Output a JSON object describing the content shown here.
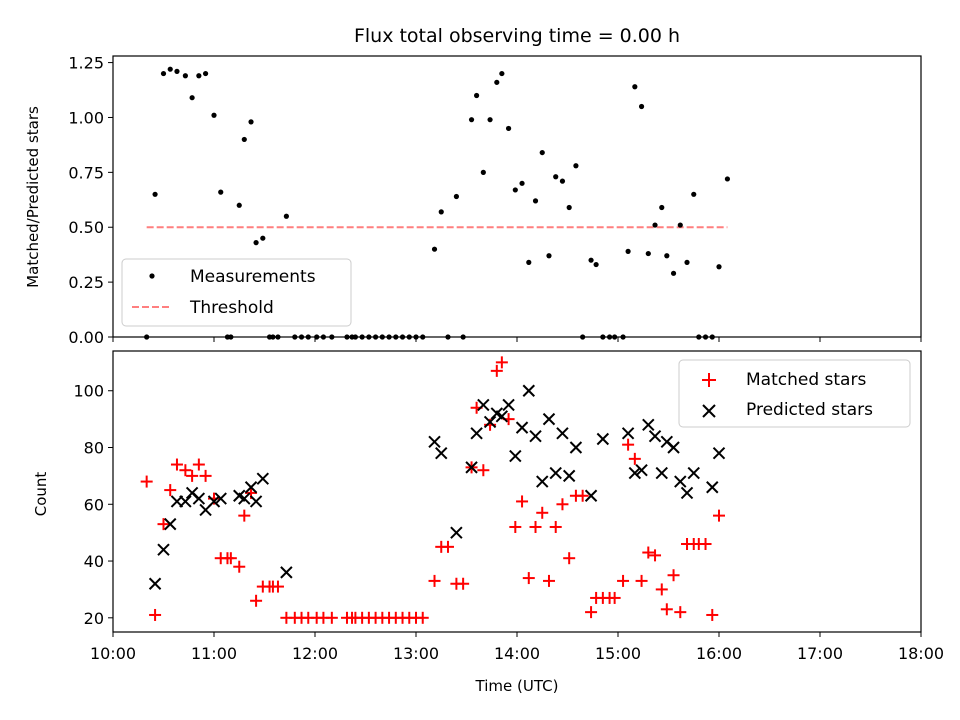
{
  "chart_data": [
    {
      "type": "scatter",
      "title": "Flux total observing time = 0.00 h",
      "xlabel": "",
      "ylabel": "Matched/Predicted stars",
      "xlim": [
        "10:00",
        "18:00"
      ],
      "ylim": [
        0,
        1.28
      ],
      "y_ticks": [
        "0.00",
        "0.25",
        "0.50",
        "0.75",
        "1.00",
        "1.25"
      ],
      "legend_position": "lower-left",
      "series": [
        {
          "name": "Measurements",
          "marker": "dot",
          "color": "#000000",
          "points": [
            [
              "10:20",
              0.0
            ],
            [
              "10:25",
              0.65
            ],
            [
              "10:30",
              1.2
            ],
            [
              "10:34",
              1.22
            ],
            [
              "10:38",
              1.21
            ],
            [
              "10:43",
              1.19
            ],
            [
              "10:47",
              1.09
            ],
            [
              "10:51",
              1.19
            ],
            [
              "10:55",
              1.2
            ],
            [
              "11:00",
              1.01
            ],
            [
              "11:04",
              0.66
            ],
            [
              "11:08",
              0.0
            ],
            [
              "11:10",
              0.0
            ],
            [
              "11:15",
              0.6
            ],
            [
              "11:18",
              0.9
            ],
            [
              "11:22",
              0.98
            ],
            [
              "11:25",
              0.43
            ],
            [
              "11:29",
              0.45
            ],
            [
              "11:33",
              0.0
            ],
            [
              "11:35",
              0.0
            ],
            [
              "11:38",
              0.0
            ],
            [
              "11:43",
              0.55
            ],
            [
              "11:48",
              0.0
            ],
            [
              "11:52",
              0.0
            ],
            [
              "11:56",
              0.0
            ],
            [
              "12:01",
              0.0
            ],
            [
              "12:05",
              0.0
            ],
            [
              "12:10",
              0.0
            ],
            [
              "12:19",
              0.0
            ],
            [
              "12:22",
              0.0
            ],
            [
              "12:24",
              0.0
            ],
            [
              "12:28",
              0.0
            ],
            [
              "12:32",
              0.0
            ],
            [
              "12:36",
              0.0
            ],
            [
              "12:40",
              0.0
            ],
            [
              "12:44",
              0.0
            ],
            [
              "12:48",
              0.0
            ],
            [
              "12:52",
              0.0
            ],
            [
              "12:56",
              0.0
            ],
            [
              "13:00",
              0.0
            ],
            [
              "13:04",
              0.0
            ],
            [
              "13:11",
              0.4
            ],
            [
              "13:15",
              0.57
            ],
            [
              "13:19",
              0.0
            ],
            [
              "13:24",
              0.64
            ],
            [
              "13:28",
              0.0
            ],
            [
              "13:33",
              0.99
            ],
            [
              "13:36",
              1.1
            ],
            [
              "13:40",
              0.75
            ],
            [
              "13:44",
              0.99
            ],
            [
              "13:48",
              1.16
            ],
            [
              "13:51",
              1.2
            ],
            [
              "13:55",
              0.95
            ],
            [
              "13:59",
              0.67
            ],
            [
              "14:03",
              0.7
            ],
            [
              "14:07",
              0.34
            ],
            [
              "14:11",
              0.62
            ],
            [
              "14:15",
              0.84
            ],
            [
              "14:19",
              0.37
            ],
            [
              "14:23",
              0.73
            ],
            [
              "14:27",
              0.71
            ],
            [
              "14:31",
              0.59
            ],
            [
              "14:35",
              0.78
            ],
            [
              "14:39",
              0.0
            ],
            [
              "14:44",
              0.35
            ],
            [
              "14:47",
              0.33
            ],
            [
              "14:51",
              0.0
            ],
            [
              "14:55",
              0.0
            ],
            [
              "14:58",
              0.0
            ],
            [
              "15:03",
              0.0
            ],
            [
              "15:06",
              0.39
            ],
            [
              "15:10",
              1.14
            ],
            [
              "15:14",
              1.05
            ],
            [
              "15:18",
              0.38
            ],
            [
              "15:22",
              0.51
            ],
            [
              "15:26",
              0.59
            ],
            [
              "15:29",
              0.37
            ],
            [
              "15:33",
              0.29
            ],
            [
              "15:37",
              0.51
            ],
            [
              "15:41",
              0.34
            ],
            [
              "15:45",
              0.65
            ],
            [
              "15:48",
              0.0
            ],
            [
              "15:52",
              0.0
            ],
            [
              "15:56",
              0.0
            ],
            [
              "16:00",
              0.32
            ],
            [
              "16:05",
              0.72
            ]
          ]
        },
        {
          "name": "Threshold",
          "style": "dashed",
          "color": "#ff7f7f",
          "points": [
            [
              "10:20",
              0.5
            ],
            [
              "16:05",
              0.5
            ]
          ]
        }
      ]
    },
    {
      "type": "scatter",
      "xlabel": "Time (UTC)",
      "ylabel": "Count",
      "xlim": [
        "10:00",
        "18:00"
      ],
      "ylim": [
        15,
        114
      ],
      "x_ticks": [
        "10:00",
        "11:00",
        "12:00",
        "13:00",
        "14:00",
        "15:00",
        "16:00",
        "17:00",
        "18:00"
      ],
      "y_ticks": [
        "20",
        "40",
        "60",
        "80",
        "100"
      ],
      "legend_position": "upper-right",
      "series": [
        {
          "name": "Matched stars",
          "marker": "plus",
          "color": "#ff0000",
          "points": [
            [
              "10:20",
              68
            ],
            [
              "10:25",
              21
            ],
            [
              "10:30",
              53
            ],
            [
              "10:34",
              65
            ],
            [
              "10:38",
              74
            ],
            [
              "10:43",
              72
            ],
            [
              "10:47",
              70
            ],
            [
              "10:51",
              74
            ],
            [
              "10:55",
              70
            ],
            [
              "11:00",
              62
            ],
            [
              "11:04",
              41
            ],
            [
              "11:08",
              41
            ],
            [
              "11:10",
              41
            ],
            [
              "11:15",
              38
            ],
            [
              "11:18",
              56
            ],
            [
              "11:22",
              64
            ],
            [
              "11:25",
              26
            ],
            [
              "11:29",
              31
            ],
            [
              "11:33",
              31
            ],
            [
              "11:35",
              31
            ],
            [
              "11:38",
              31
            ],
            [
              "11:43",
              20
            ],
            [
              "11:48",
              20
            ],
            [
              "11:52",
              20
            ],
            [
              "11:56",
              20
            ],
            [
              "12:01",
              20
            ],
            [
              "12:05",
              20
            ],
            [
              "12:10",
              20
            ],
            [
              "12:19",
              20
            ],
            [
              "12:22",
              20
            ],
            [
              "12:24",
              20
            ],
            [
              "12:28",
              20
            ],
            [
              "12:32",
              20
            ],
            [
              "12:36",
              20
            ],
            [
              "12:40",
              20
            ],
            [
              "12:44",
              20
            ],
            [
              "12:48",
              20
            ],
            [
              "12:52",
              20
            ],
            [
              "12:56",
              20
            ],
            [
              "13:00",
              20
            ],
            [
              "13:04",
              20
            ],
            [
              "13:11",
              33
            ],
            [
              "13:15",
              45
            ],
            [
              "13:19",
              45
            ],
            [
              "13:24",
              32
            ],
            [
              "13:28",
              32
            ],
            [
              "13:33",
              73
            ],
            [
              "13:36",
              94
            ],
            [
              "13:40",
              72
            ],
            [
              "13:44",
              88
            ],
            [
              "13:48",
              107
            ],
            [
              "13:51",
              110
            ],
            [
              "13:55",
              90
            ],
            [
              "13:59",
              52
            ],
            [
              "14:03",
              61
            ],
            [
              "14:07",
              34
            ],
            [
              "14:11",
              52
            ],
            [
              "14:15",
              57
            ],
            [
              "14:19",
              33
            ],
            [
              "14:23",
              52
            ],
            [
              "14:27",
              60
            ],
            [
              "14:31",
              41
            ],
            [
              "14:35",
              63
            ],
            [
              "14:39",
              63
            ],
            [
              "14:44",
              22
            ],
            [
              "14:47",
              27
            ],
            [
              "14:51",
              27
            ],
            [
              "14:55",
              27
            ],
            [
              "14:58",
              27
            ],
            [
              "15:03",
              33
            ],
            [
              "15:06",
              81
            ],
            [
              "15:10",
              76
            ],
            [
              "15:14",
              33
            ],
            [
              "15:18",
              43
            ],
            [
              "15:22",
              42
            ],
            [
              "15:26",
              30
            ],
            [
              "15:29",
              23
            ],
            [
              "15:33",
              35
            ],
            [
              "15:37",
              22
            ],
            [
              "15:41",
              46
            ],
            [
              "15:45",
              46
            ],
            [
              "15:48",
              46
            ],
            [
              "15:52",
              46
            ],
            [
              "15:56",
              21
            ],
            [
              "16:00",
              56
            ]
          ]
        },
        {
          "name": "Predicted stars",
          "marker": "x",
          "color": "#000000",
          "points": [
            [
              "10:25",
              32
            ],
            [
              "10:30",
              44
            ],
            [
              "10:34",
              53
            ],
            [
              "10:38",
              61
            ],
            [
              "10:43",
              61
            ],
            [
              "10:47",
              64
            ],
            [
              "10:51",
              62
            ],
            [
              "10:55",
              58
            ],
            [
              "11:00",
              61
            ],
            [
              "11:04",
              62
            ],
            [
              "11:15",
              63
            ],
            [
              "11:18",
              62
            ],
            [
              "11:22",
              66
            ],
            [
              "11:25",
              61
            ],
            [
              "11:29",
              69
            ],
            [
              "11:43",
              36
            ],
            [
              "13:11",
              82
            ],
            [
              "13:15",
              78
            ],
            [
              "13:24",
              50
            ],
            [
              "13:33",
              73
            ],
            [
              "13:36",
              85
            ],
            [
              "13:40",
              95
            ],
            [
              "13:44",
              89
            ],
            [
              "13:48",
              92
            ],
            [
              "13:51",
              91
            ],
            [
              "13:55",
              95
            ],
            [
              "13:59",
              77
            ],
            [
              "14:03",
              87
            ],
            [
              "14:07",
              100
            ],
            [
              "14:11",
              84
            ],
            [
              "14:15",
              68
            ],
            [
              "14:19",
              90
            ],
            [
              "14:23",
              71
            ],
            [
              "14:27",
              85
            ],
            [
              "14:31",
              70
            ],
            [
              "14:35",
              80
            ],
            [
              "14:44",
              63
            ],
            [
              "14:51",
              83
            ],
            [
              "15:06",
              85
            ],
            [
              "15:10",
              71
            ],
            [
              "15:14",
              72
            ],
            [
              "15:18",
              88
            ],
            [
              "15:22",
              84
            ],
            [
              "15:26",
              71
            ],
            [
              "15:29",
              82
            ],
            [
              "15:33",
              80
            ],
            [
              "15:37",
              68
            ],
            [
              "15:41",
              64
            ],
            [
              "15:45",
              71
            ],
            [
              "15:56",
              66
            ],
            [
              "16:00",
              78
            ]
          ]
        }
      ]
    }
  ]
}
